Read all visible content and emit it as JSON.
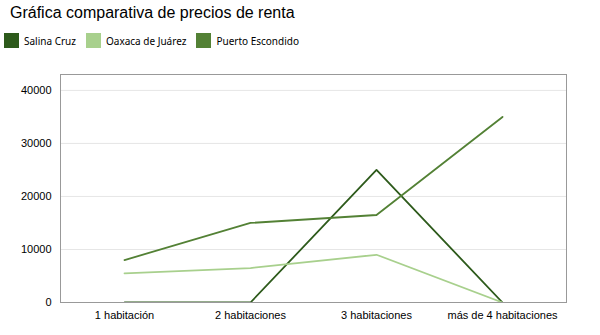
{
  "chart_data": {
    "type": "line",
    "title": "Gráfica comparativa de precios de renta",
    "categories": [
      "1 habitación",
      "2 habitaciones",
      "3 habitaciones",
      "más de 4 habitaciones"
    ],
    "series": [
      {
        "name": "Salina Cruz",
        "color": "#2d5a1b",
        "line_style": "solid",
        "values": [
          0,
          0,
          25000,
          0
        ]
      },
      {
        "name": "Oaxaca de Juárez",
        "color": "#a8d08d",
        "line_style": "solid",
        "values": [
          5500,
          6500,
          9000,
          0
        ]
      },
      {
        "name": "Puerto Escondido",
        "color": "#538135",
        "line_style": "solid",
        "values": [
          8000,
          15000,
          16500,
          35000
        ]
      }
    ],
    "ylim": [
      0,
      43000
    ],
    "yticks": [
      0,
      10000,
      20000,
      30000,
      40000
    ],
    "grid": true,
    "legend": "top"
  }
}
